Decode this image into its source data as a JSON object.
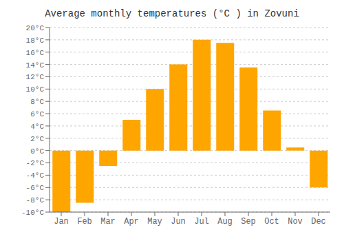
{
  "chart_data": {
    "type": "bar",
    "title": "Average monthly temperatures (°C ) in Zovuni",
    "categories": [
      "Jan",
      "Feb",
      "Mar",
      "Apr",
      "May",
      "Jun",
      "Jul",
      "Aug",
      "Sep",
      "Oct",
      "Nov",
      "Dec"
    ],
    "values": [
      -10,
      -8.5,
      -2.5,
      5,
      10,
      14,
      18,
      17.5,
      13.5,
      6.5,
      0.5,
      -6
    ],
    "color": "#FFA500",
    "ylim": [
      -10,
      20
    ],
    "yticks": [
      {
        "value": -10,
        "label": "-10°C"
      },
      {
        "value": -8,
        "label": "-8°C"
      },
      {
        "value": -6,
        "label": "-6°C"
      },
      {
        "value": -4,
        "label": "-4°C"
      },
      {
        "value": -2,
        "label": "-2°C"
      },
      {
        "value": 0,
        "label": "0°C"
      },
      {
        "value": 2,
        "label": "2°C"
      },
      {
        "value": 4,
        "label": "4°C"
      },
      {
        "value": 6,
        "label": "6°C"
      },
      {
        "value": 8,
        "label": "8°C"
      },
      {
        "value": 10,
        "label": "10°C"
      },
      {
        "value": 12,
        "label": "12°C"
      },
      {
        "value": 14,
        "label": "14°C"
      },
      {
        "value": 16,
        "label": "16°C"
      },
      {
        "value": 18,
        "label": "18°C"
      },
      {
        "value": 20,
        "label": "20°C"
      }
    ],
    "grid": true
  }
}
